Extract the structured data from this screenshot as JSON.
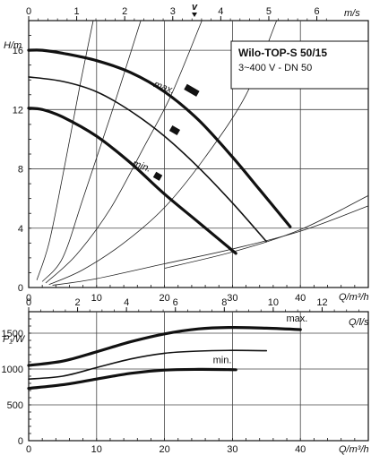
{
  "chart_data": [
    {
      "type": "line",
      "title": "Wilo-TOP-S 50/15",
      "subtitle": "3~400 V - DN 50",
      "xlabel": "Q/m³/h",
      "ylabel": "H/m",
      "top_axis_label": "m/s",
      "top_axis_symbol": "v",
      "xlim": [
        0,
        50
      ],
      "ylim": [
        0,
        18
      ],
      "grid": true,
      "x_ticks": [
        "0",
        "10",
        "20",
        "30",
        "40"
      ],
      "y_ticks": [
        "0",
        "4",
        "8",
        "12",
        "16"
      ],
      "top_ticks": [
        "0",
        "1",
        "2",
        "3",
        "4",
        "5",
        "6"
      ],
      "series": [
        {
          "name": "max.",
          "x": [
            0,
            2,
            5,
            10,
            15,
            20,
            25,
            30,
            34,
            38.5
          ],
          "y": [
            16,
            16,
            15.8,
            15.3,
            14.5,
            13.2,
            11.3,
            8.8,
            6.6,
            4.1
          ]
        },
        {
          "x": [
            0,
            5,
            10,
            15,
            20,
            25,
            30,
            35
          ],
          "y": [
            14.2,
            13.9,
            13.2,
            11.9,
            10.2,
            8.1,
            5.7,
            3.1
          ]
        },
        {
          "name": "min.",
          "x": [
            0,
            2,
            5,
            10,
            15,
            20,
            25,
            30.5
          ],
          "y": [
            12.1,
            12,
            11.5,
            10.2,
            8.4,
            6.3,
            4.4,
            2.3
          ]
        }
      ],
      "system_curves": [
        {
          "x": [
            1.2,
            3,
            5,
            7.5,
            9.5
          ],
          "y": [
            0.5,
            3,
            7.5,
            13.5,
            18
          ]
        },
        {
          "x": [
            2,
            5,
            8,
            12,
            16.5
          ],
          "y": [
            0.4,
            2,
            6,
            11.5,
            18
          ]
        },
        {
          "x": [
            2.5,
            7,
            12,
            17,
            21,
            25.5
          ],
          "y": [
            0.3,
            2.2,
            5.3,
            9.5,
            13,
            18
          ]
        },
        {
          "x": [
            3,
            8,
            14,
            20,
            26,
            32,
            36.5
          ],
          "y": [
            0.2,
            1.2,
            3,
            5.4,
            8.8,
            13,
            18
          ]
        },
        {
          "x": [
            3.5,
            10,
            20,
            30,
            40,
            50
          ],
          "y": [
            0.15,
            0.6,
            1.6,
            2.6,
            3.8,
            5.5
          ]
        },
        {
          "x": [
            20,
            30,
            40,
            50
          ],
          "y": [
            1.3,
            2.4,
            3.9,
            6.2
          ]
        }
      ],
      "markers": [
        {
          "x": 24,
          "y": 13.3
        },
        {
          "x": 21.5,
          "y": 10.6
        },
        {
          "x": 19,
          "y": 7.5
        }
      ]
    },
    {
      "type": "line",
      "xlabel": "Q/m³/h",
      "ylabel": "P₁/W",
      "top_axis_label": "Q/l/s",
      "xlim": [
        0,
        50
      ],
      "ylim": [
        0,
        1800
      ],
      "grid": true,
      "x_ticks": [
        "0",
        "10",
        "20",
        "30",
        "40"
      ],
      "y_ticks": [
        "0",
        "500",
        "1000",
        "1500"
      ],
      "top_ticks": [
        "0",
        "2",
        "4",
        "6",
        "8",
        "10",
        "12"
      ],
      "series": [
        {
          "name": "max.",
          "x": [
            0,
            5,
            10,
            15,
            20,
            25,
            30,
            35,
            40
          ],
          "y": [
            1050,
            1110,
            1240,
            1380,
            1490,
            1560,
            1580,
            1570,
            1550
          ]
        },
        {
          "x": [
            0,
            5,
            10,
            15,
            20,
            25,
            30,
            35
          ],
          "y": [
            860,
            900,
            1020,
            1140,
            1220,
            1250,
            1260,
            1255
          ]
        },
        {
          "name": "min.",
          "x": [
            0,
            5,
            10,
            15,
            20,
            25,
            30.5
          ],
          "y": [
            730,
            780,
            860,
            940,
            985,
            995,
            990
          ]
        }
      ]
    }
  ]
}
